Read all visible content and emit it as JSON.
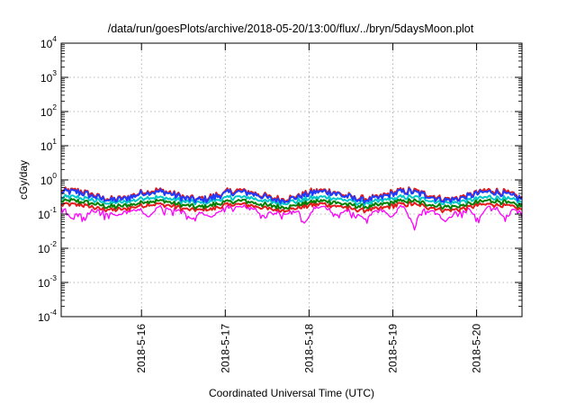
{
  "chart_data": {
    "type": "line",
    "title": "/data/run/goesPlots/archive/2018-05-20/13:00/flux/../bryn/5daysMoon.plot",
    "xlabel": "Coordinated Universal Time (UTC)",
    "ylabel": "cGy/day",
    "y_scale": "log",
    "ylim": [
      0.0001,
      10000
    ],
    "y_ticks": [
      {
        "base": "10",
        "exp": "-4",
        "value": 0.0001
      },
      {
        "base": "10",
        "exp": "-3",
        "value": 0.001
      },
      {
        "base": "10",
        "exp": "-2",
        "value": 0.01
      },
      {
        "base": "10",
        "exp": "-1",
        "value": 0.1
      },
      {
        "base": "10",
        "exp": "0",
        "value": 1
      },
      {
        "base": "10",
        "exp": "1",
        "value": 10
      },
      {
        "base": "10",
        "exp": "2",
        "value": 100
      },
      {
        "base": "10",
        "exp": "3",
        "value": 1000
      },
      {
        "base": "10",
        "exp": "4",
        "value": 10000
      }
    ],
    "x_ticks": [
      "2018-5-16",
      "2018-5-17",
      "2018-5-18",
      "2018-5-19",
      "2018-5-20"
    ],
    "xlim": [
      "2018-05-15 01:00",
      "2018-05-20 13:00"
    ],
    "grid": true,
    "series": [
      {
        "color": "#ff00ff",
        "base_value": 0.13,
        "dips": [
          [
            "2018-05-15 04:00",
            0.07
          ],
          [
            "2018-05-15 07:30",
            0.08
          ],
          [
            "2018-05-15 17:00",
            0.09
          ],
          [
            "2018-05-16 02:00",
            0.08
          ],
          [
            "2018-05-16 14:30",
            0.07
          ],
          [
            "2018-05-16 20:00",
            0.08
          ],
          [
            "2018-05-17 11:00",
            0.09
          ],
          [
            "2018-05-17 23:00",
            0.06
          ],
          [
            "2018-05-18 08:00",
            0.09
          ],
          [
            "2018-05-18 16:00",
            0.07
          ],
          [
            "2018-05-18 23:30",
            0.08
          ],
          [
            "2018-05-19 06:00",
            0.045
          ],
          [
            "2018-05-19 15:00",
            0.06
          ],
          [
            "2018-05-20 00:30",
            0.07
          ],
          [
            "2018-05-20 08:00",
            0.08
          ]
        ]
      },
      {
        "color": "#e41a1c",
        "base_value": 0.16,
        "dips": []
      },
      {
        "color": "#008000",
        "base_value": 0.2,
        "dips": []
      },
      {
        "color": "#00c8c8",
        "base_value": 0.26,
        "dips": []
      },
      {
        "color": "#e41a1c",
        "base_value": 0.37,
        "dips": []
      },
      {
        "color": "#1e3cff",
        "base_value": 0.34,
        "dips": []
      }
    ]
  }
}
